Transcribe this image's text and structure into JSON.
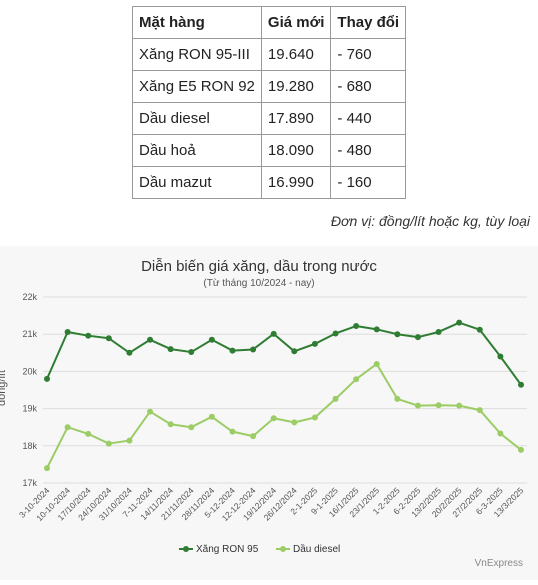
{
  "table": {
    "headers": [
      "Mặt hàng",
      "Giá mới",
      "Thay đổi"
    ],
    "rows": [
      {
        "item": "Xăng RON 95-III",
        "price": "19.640",
        "change": "- 760"
      },
      {
        "item": "Xăng E5 RON 92",
        "price": "19.280",
        "change": "- 680"
      },
      {
        "item": "Dầu diesel",
        "price": "17.890",
        "change": "- 440"
      },
      {
        "item": "Dầu hoả",
        "price": "18.090",
        "change": "- 480"
      },
      {
        "item": "Dầu mazut",
        "price": "16.990",
        "change": "- 160"
      }
    ]
  },
  "unit_note": "Đơn vị: đồng/lít hoặc kg, tùy loại",
  "chart_data": {
    "type": "line",
    "title": "Diễn biến giá xăng, dầu trong nước",
    "subtitle": "(Từ tháng 10/2024 - nay)",
    "ylabel": "đồng/lít",
    "ylim": [
      17000,
      22000
    ],
    "yticks": [
      17000,
      18000,
      19000,
      20000,
      21000,
      22000
    ],
    "ytick_labels": [
      "17k",
      "18k",
      "19k",
      "20k",
      "21k",
      "22k"
    ],
    "grid": true,
    "legend": "bottom",
    "categories": [
      "3-10-2024",
      "10-10-2024",
      "17/10/2024",
      "24/10/2024",
      "31/10/2024",
      "7-11-2024",
      "14/11/2024",
      "21/11/2024",
      "28/11/2024",
      "5-12-2024",
      "12-12-2024",
      "19/12/2024",
      "26/12/2024",
      "2-1-2025",
      "9-1-2025",
      "16/1/2025",
      "23/1/2025",
      "1-2-2025",
      "6-2-2025",
      "13/2/2025",
      "20/2/2025",
      "27/2/2025",
      "6-3-2025",
      "13/3/2025"
    ],
    "series": [
      {
        "name": "Xăng RON 95",
        "color": "#2e7d32",
        "values": [
          19800,
          21060,
          20960,
          20890,
          20500,
          20850,
          20600,
          20520,
          20850,
          20560,
          20590,
          21010,
          20540,
          20740,
          21020,
          21220,
          21130,
          21000,
          20920,
          21060,
          21310,
          21120,
          20400,
          19640
        ]
      },
      {
        "name": "Dầu diesel",
        "color": "#9ccc65",
        "values": [
          17400,
          18500,
          18320,
          18060,
          18140,
          18920,
          18580,
          18500,
          18780,
          18380,
          18260,
          18740,
          18630,
          18760,
          19260,
          19790,
          20200,
          19260,
          19080,
          19090,
          19080,
          18960,
          18330,
          17890
        ]
      }
    ],
    "watermark": "VnExpress"
  }
}
